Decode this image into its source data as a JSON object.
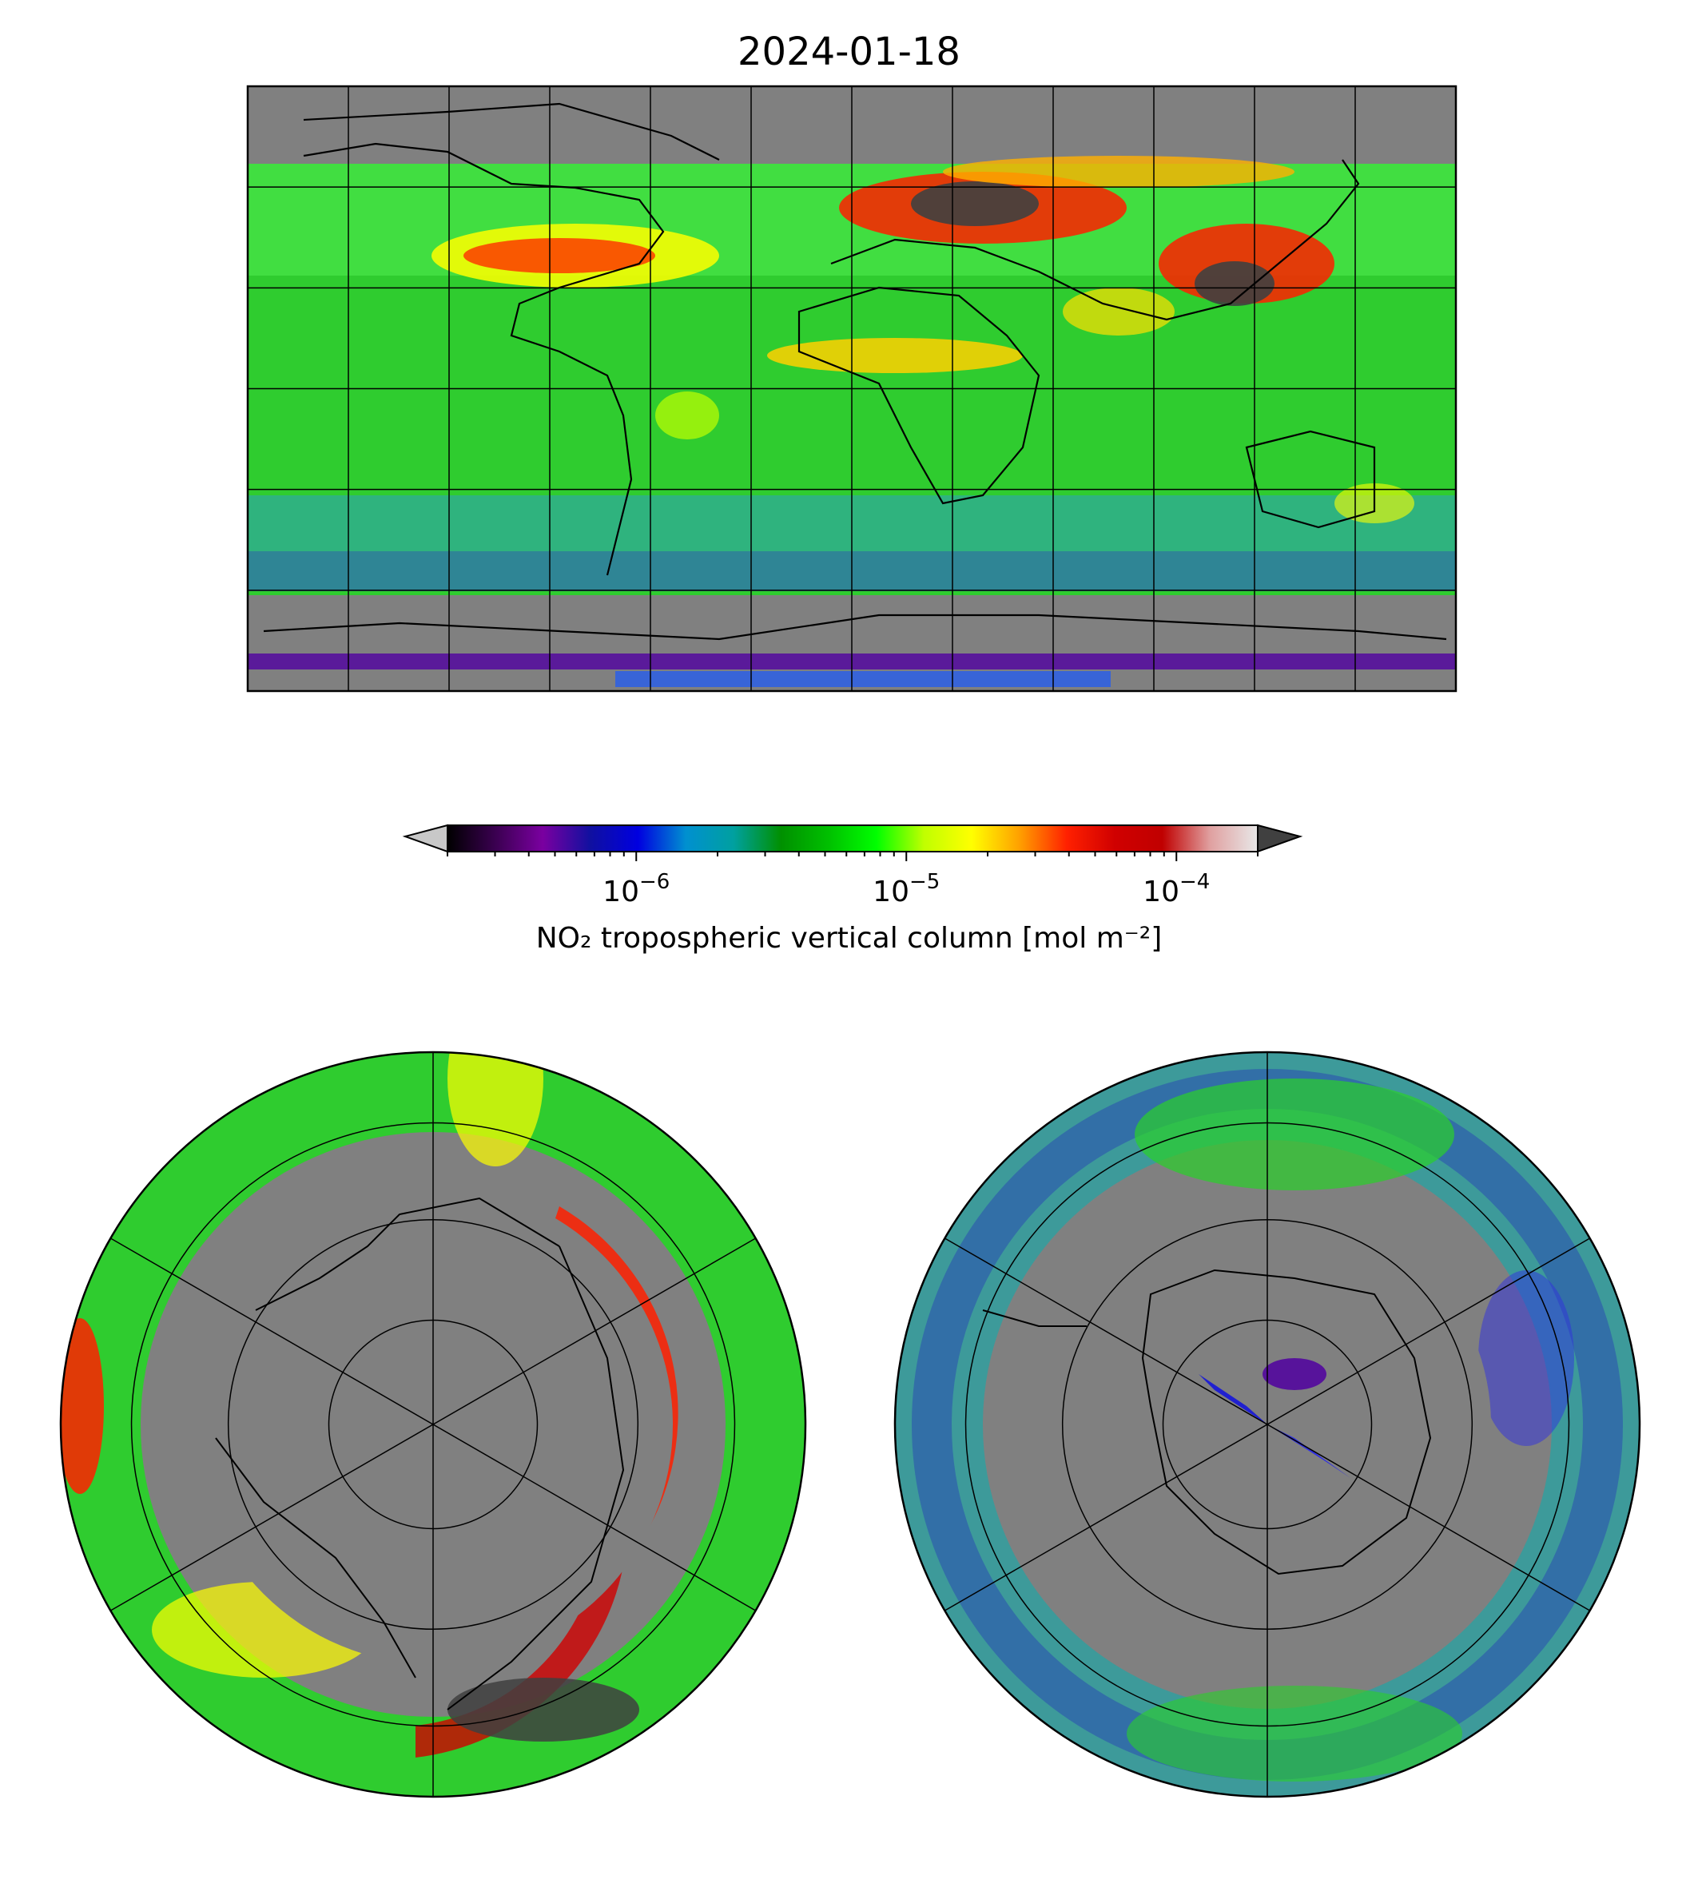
{
  "title": "2024-01-18",
  "colorbar": {
    "label": "NO₂ tropospheric vertical column [mol m⁻²]",
    "scale": "log",
    "range": [
      2e-07,
      0.0002
    ],
    "ticks": [
      {
        "value": 1e-06,
        "base": "10",
        "exp": "−6"
      },
      {
        "value": 1e-05,
        "base": "10",
        "exp": "−5"
      },
      {
        "value": 0.0001,
        "base": "10",
        "exp": "−4"
      }
    ],
    "extend": "both",
    "under_color": "#c8c8c8",
    "over_color": "#404040",
    "colors": [
      "#000000",
      "#3a0050",
      "#7a00a0",
      "#1010a0",
      "#0000e0",
      "#0090d0",
      "#00a0a0",
      "#009000",
      "#00c000",
      "#00ff00",
      "#c0ff00",
      "#ffff00",
      "#ffa000",
      "#ff2000",
      "#d00000",
      "#c00000",
      "#e0a0a0",
      "#e8e8e8"
    ]
  },
  "map_colors": {
    "missing": "#808080",
    "coast": "#000000",
    "grid": "#000000"
  },
  "panels": [
    {
      "name": "global",
      "projection": "plate-carree"
    },
    {
      "name": "north-polar",
      "projection": "north-polar-stereographic"
    },
    {
      "name": "south-polar",
      "projection": "south-polar-stereographic"
    }
  ]
}
